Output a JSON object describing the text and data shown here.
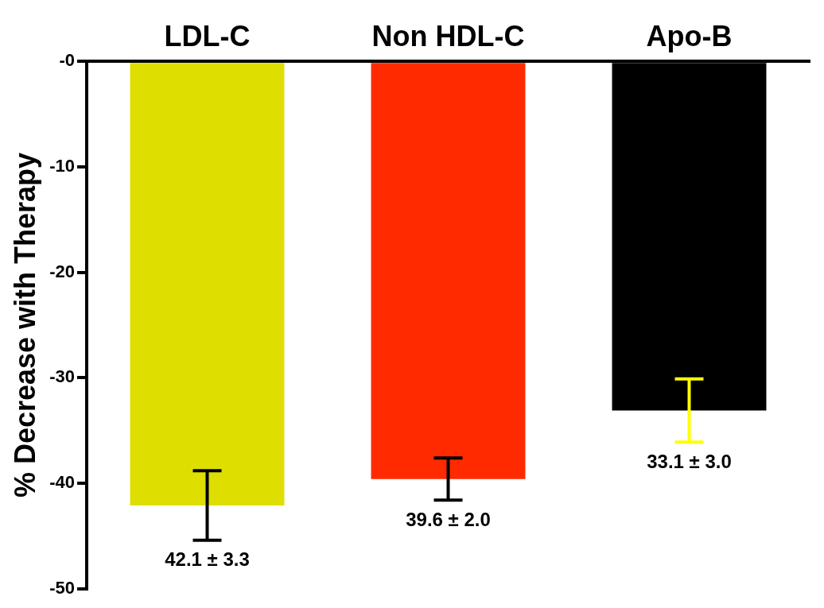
{
  "chart_data": {
    "type": "bar",
    "ylabel": "% Decrease with Therapy",
    "categories": [
      "LDL-C",
      "Non HDL-C",
      "Apo-B"
    ],
    "values": [
      -42.1,
      -39.6,
      -33.1
    ],
    "colors": [
      "#dede00",
      "#ff2a00",
      "#000000"
    ],
    "errors": [
      3.3,
      2.0,
      3.0
    ],
    "annotations": [
      {
        "text": "42.1 ± 3.3",
        "x": "LDL-C",
        "y": -45.4
      },
      {
        "text": "39.6 ± 2.0",
        "x": "Non HDL-C",
        "y": -41.6
      },
      {
        "text": "33.1 ± 3.0",
        "x": "Apo-B",
        "y": -36.1
      }
    ],
    "ylim": [
      -50,
      0
    ],
    "yticks": [
      {
        "value": 0,
        "label": "-0"
      },
      -10,
      -20,
      -30,
      -40,
      -50
    ]
  }
}
